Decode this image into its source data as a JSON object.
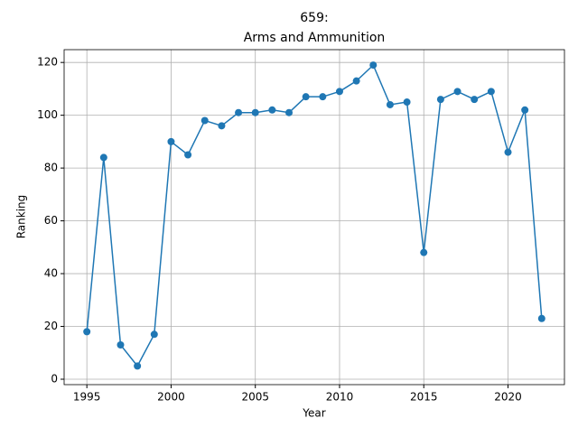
{
  "chart_data": {
    "type": "line",
    "title": [
      "659:",
      "Arms and Ammunition"
    ],
    "xlabel": "Year",
    "ylabel": "Ranking",
    "x": [
      1995,
      1996,
      1997,
      1998,
      1999,
      2000,
      2001,
      2002,
      2003,
      2004,
      2005,
      2006,
      2007,
      2008,
      2009,
      2010,
      2011,
      2012,
      2013,
      2014,
      2015,
      2016,
      2017,
      2018,
      2019,
      2020,
      2021,
      2022
    ],
    "series": [
      {
        "name": "Ranking",
        "color": "#1f77b4",
        "values": [
          18,
          84,
          13,
          5,
          17,
          90,
          85,
          98,
          96,
          101,
          101,
          102,
          101,
          107,
          107,
          109,
          113,
          119,
          104,
          105,
          48,
          106,
          109,
          106,
          109,
          86,
          102,
          23
        ]
      }
    ],
    "xlim": [
      1993.65,
      2023.35
    ],
    "xticks": [
      1995,
      2000,
      2005,
      2010,
      2015,
      2020
    ],
    "ylim": [
      -2.05,
      124.85
    ],
    "yticks": [
      0,
      20,
      40,
      60,
      80,
      100,
      120
    ],
    "grid": true
  }
}
